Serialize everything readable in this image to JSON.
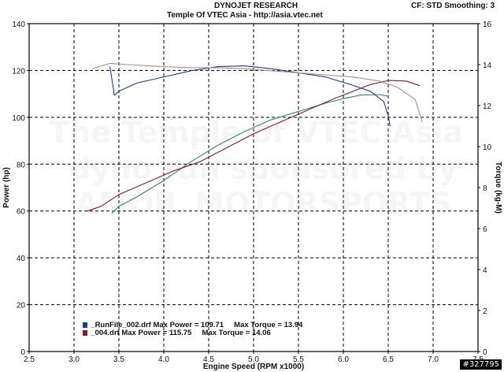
{
  "header": {
    "title": "DYNOJET RESEARCH",
    "subtitle": "Temple Of VTEC Asia - http://asia.vtec.net",
    "settings": "CF: STD  Smoothing: 3"
  },
  "watermark": {
    "line1": "The Temple of VTEC Asia",
    "line2": "dyno run sponsored by",
    "line3": "AMOIL MOTORSPORTS"
  },
  "stamp": "#327795",
  "legend": [
    {
      "label": "_RunFile_002.drf Max Power = 109.71     Max Torque = 13.94",
      "color": "#1f3a8a"
    },
    {
      "label": "_004.drf Max Power = 115.75     Max Torque = 14.06",
      "color": "#7a1f2b"
    }
  ],
  "chart_data": {
    "type": "line",
    "xlabel": "Engine Speed (RPM x1000)",
    "ylabel": "Power (hp)",
    "y2label": "Torque (kg-M)",
    "xlim": [
      2.5,
      7.5
    ],
    "ylim": [
      0,
      140
    ],
    "y2lim": [
      0,
      16
    ],
    "xticks": [
      "2.5",
      "3.0",
      "3.5",
      "4.0",
      "4.5",
      "5.0",
      "5.5",
      "6.0",
      "6.5",
      "7.0",
      "7.5"
    ],
    "yticks": [
      "0",
      "20",
      "40",
      "60",
      "80",
      "100",
      "120",
      "140"
    ],
    "y2ticks": [
      "0",
      "2",
      "4",
      "6",
      "8",
      "10",
      "12",
      "14",
      "16"
    ],
    "grid": true,
    "series": [
      {
        "color": "#2a8a6a",
        "axis": "left",
        "x": [
          3.42,
          3.5,
          3.7,
          4.0,
          4.3,
          4.6,
          4.9,
          5.2,
          5.5,
          5.8,
          6.0,
          6.2,
          6.4,
          6.5
        ],
        "y": [
          59,
          62,
          66,
          73,
          81,
          88,
          94,
          99,
          102.5,
          106,
          108,
          109.5,
          109.7,
          109
        ]
      },
      {
        "color": "#7a1f2b",
        "axis": "left",
        "x": [
          3.15,
          3.3,
          3.5,
          3.8,
          4.1,
          4.4,
          4.7,
          5.0,
          5.3,
          5.6,
          5.9,
          6.1,
          6.3,
          6.5,
          6.7,
          6.85
        ],
        "y": [
          60,
          62,
          67,
          72,
          77,
          81,
          87,
          93,
          98,
          103,
          108,
          111,
          114,
          115.75,
          115.5,
          113.5
        ]
      },
      {
        "color": "#1f3a8a",
        "axis": "right",
        "x": [
          3.4,
          3.45,
          3.5,
          3.7,
          4.0,
          4.3,
          4.6,
          4.9,
          5.2,
          5.5,
          5.8,
          6.1,
          6.3,
          6.45,
          6.5,
          6.52
        ],
        "y": [
          13.9,
          12.5,
          12.7,
          13.1,
          13.4,
          13.7,
          13.9,
          13.94,
          13.8,
          13.6,
          13.4,
          13.0,
          12.7,
          12.2,
          11.5,
          11.0
        ]
      },
      {
        "color": "#b38a8a",
        "axis": "right",
        "x": [
          3.2,
          3.4,
          3.6,
          3.8,
          4.0,
          4.3,
          4.6,
          4.9,
          5.2,
          5.5,
          5.8,
          6.1,
          6.4,
          6.6,
          6.8,
          6.88
        ],
        "y": [
          13.8,
          14.06,
          14.0,
          13.95,
          13.9,
          13.85,
          13.85,
          13.8,
          13.7,
          13.6,
          13.5,
          13.4,
          13.2,
          12.9,
          12.3,
          11.2
        ]
      }
    ]
  }
}
